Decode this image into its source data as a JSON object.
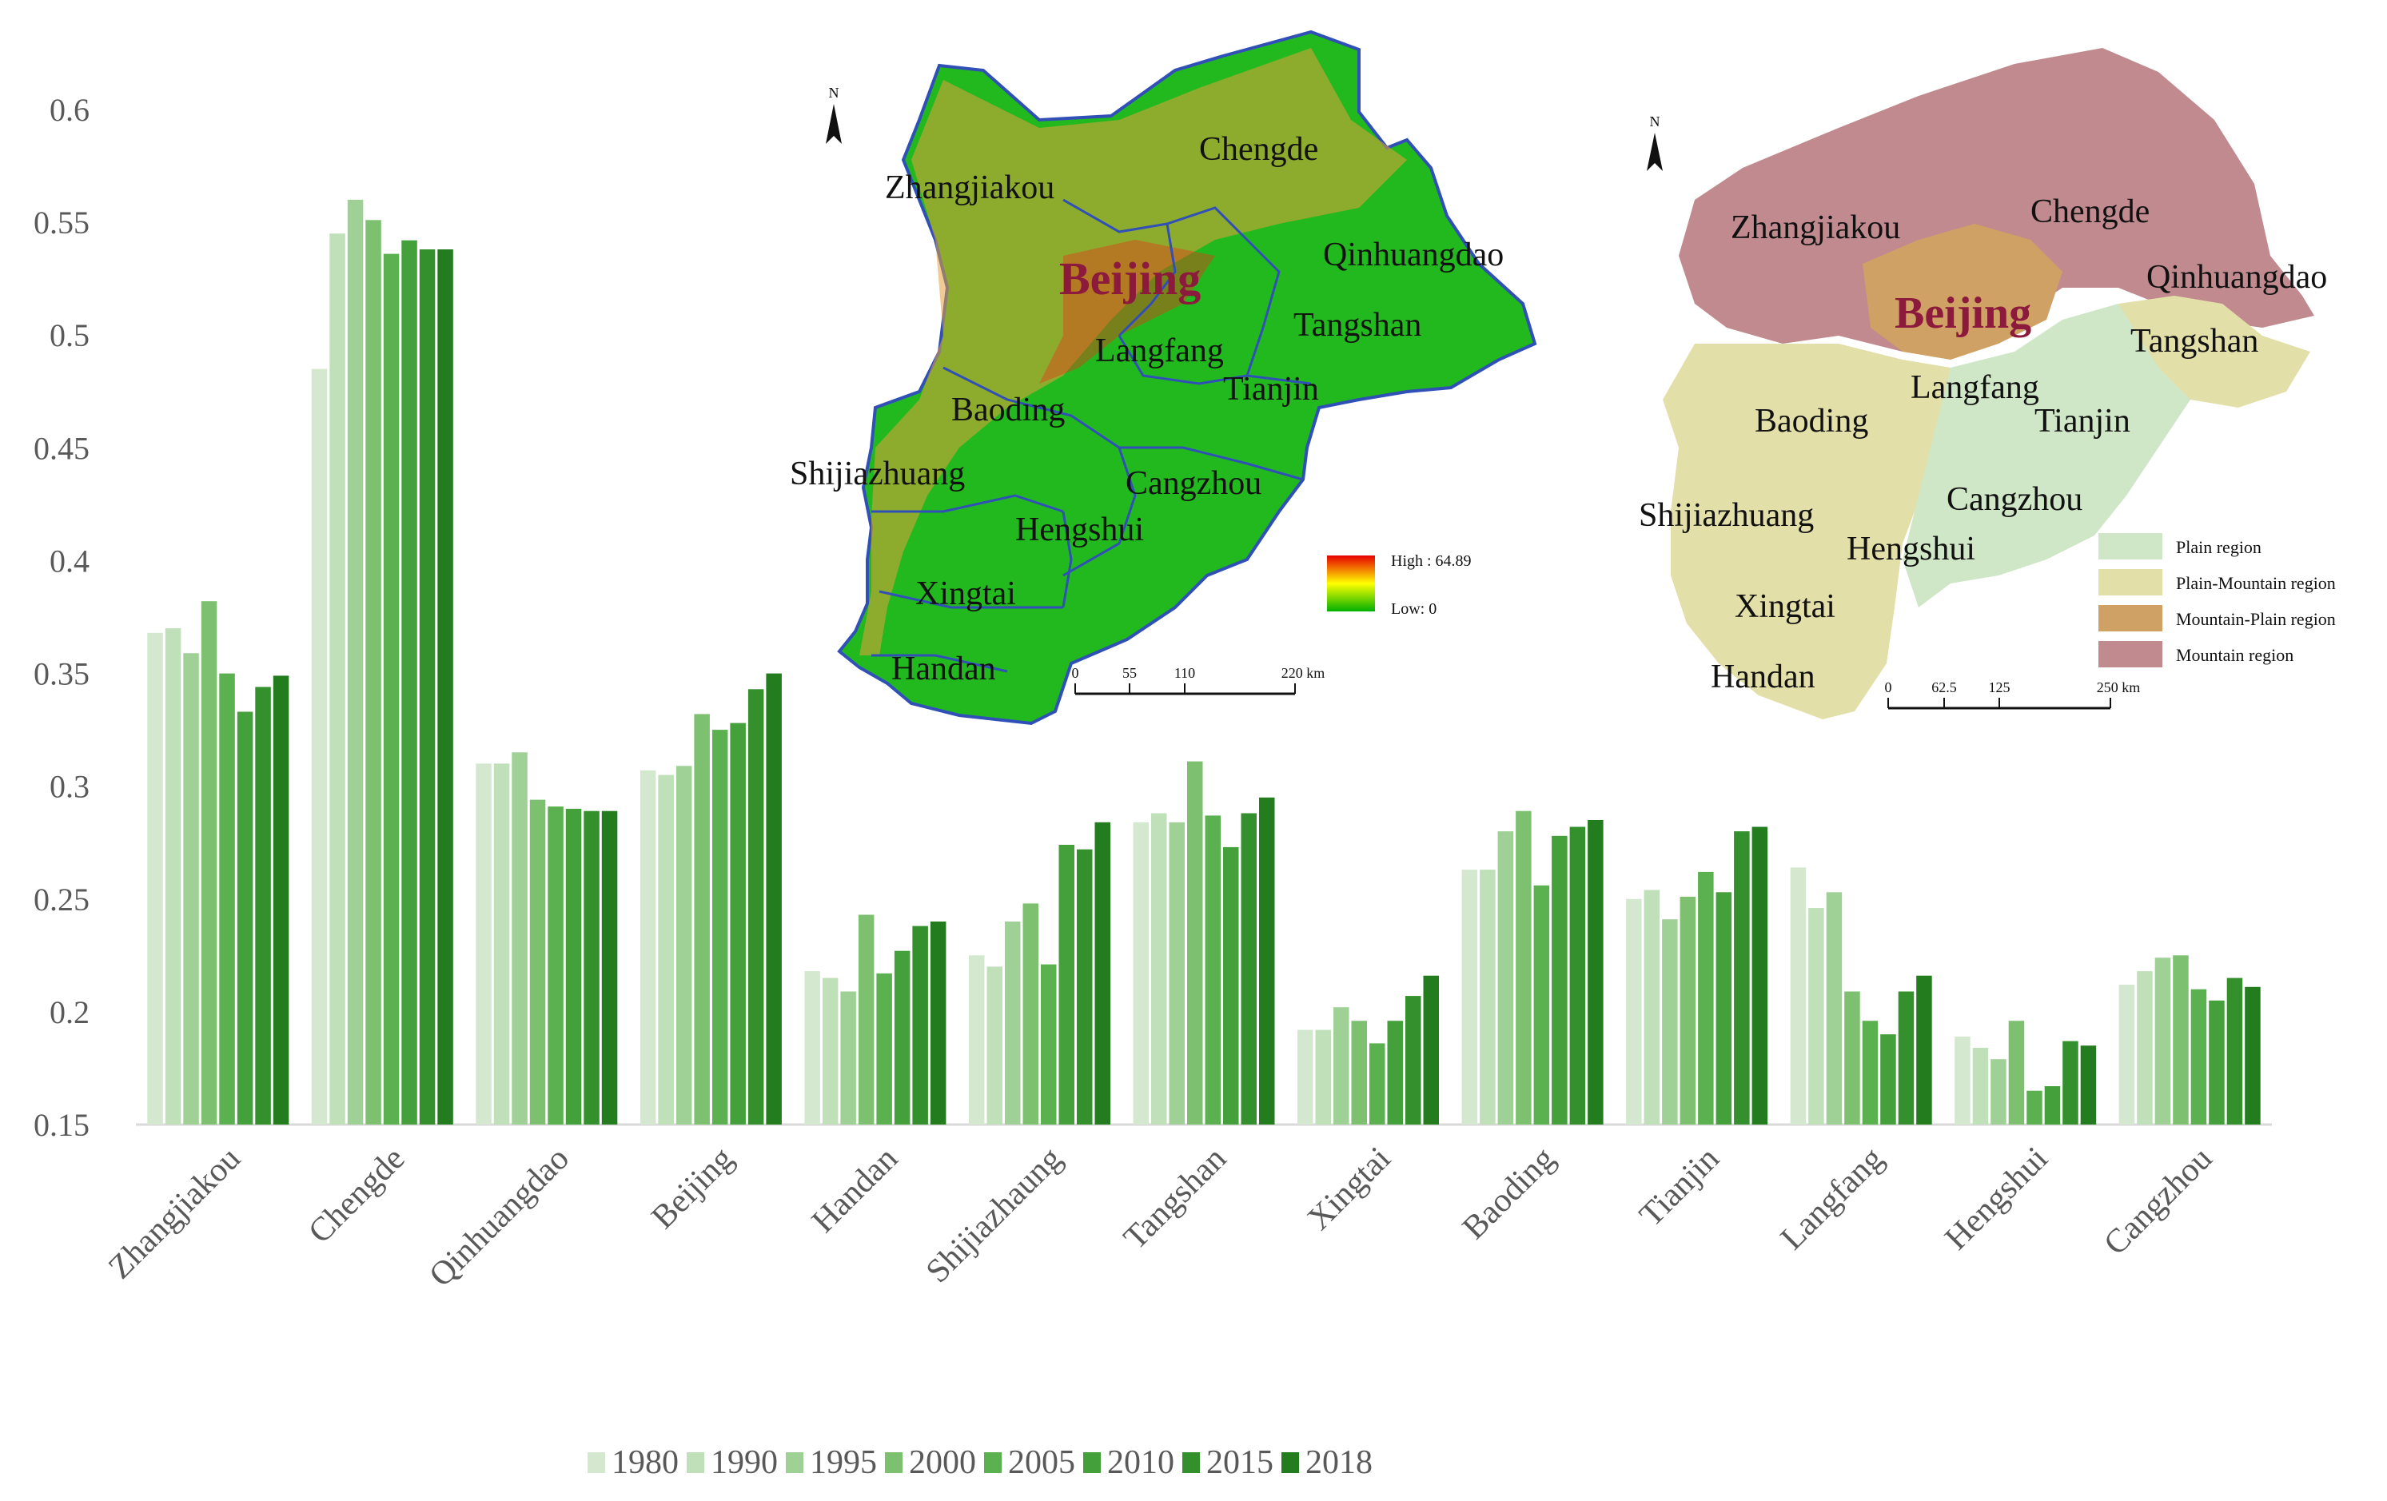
{
  "chart_data": {
    "type": "bar",
    "title": "",
    "xlabel": "",
    "ylabel": "",
    "ylim": [
      0.15,
      0.6
    ],
    "yticks": [
      "0.15",
      "0.2",
      "0.25",
      "0.3",
      "0.35",
      "0.4",
      "0.45",
      "0.5",
      "0.55",
      "0.6"
    ],
    "grid": false,
    "legend_position": "bottom",
    "categories": [
      "Zhangjiakou",
      "Chengde",
      "Qinhuangdao",
      "Beijing",
      "Handan",
      "Shijiazhaung",
      "Tangshan",
      "Xingtai",
      "Baoding",
      "Tianjin",
      "Langfang",
      "Hengshui",
      "Cangzhou"
    ],
    "series": [
      {
        "name": "1980",
        "color": "#d4e8d0",
        "values": [
          0.368,
          0.485,
          0.31,
          0.307,
          0.218,
          0.225,
          0.284,
          0.192,
          0.263,
          0.25,
          0.264,
          0.189,
          0.212
        ]
      },
      {
        "name": "1990",
        "color": "#bfe0b9",
        "values": [
          0.37,
          0.545,
          0.31,
          0.305,
          0.215,
          0.22,
          0.288,
          0.192,
          0.263,
          0.254,
          0.246,
          0.184,
          0.218
        ]
      },
      {
        "name": "1995",
        "color": "#9fd196",
        "values": [
          0.359,
          0.56,
          0.315,
          0.309,
          0.209,
          0.24,
          0.284,
          0.202,
          0.28,
          0.241,
          0.253,
          0.179,
          0.224
        ]
      },
      {
        "name": "2000",
        "color": "#7cc070",
        "values": [
          0.382,
          0.551,
          0.294,
          0.332,
          0.243,
          0.248,
          0.311,
          0.196,
          0.289,
          0.251,
          0.209,
          0.196,
          0.225
        ]
      },
      {
        "name": "2005",
        "color": "#5bb14f",
        "values": [
          0.35,
          0.536,
          0.291,
          0.325,
          0.217,
          0.221,
          0.287,
          0.186,
          0.256,
          0.262,
          0.196,
          0.165,
          0.21
        ]
      },
      {
        "name": "2010",
        "color": "#44a03a",
        "values": [
          0.333,
          0.542,
          0.29,
          0.328,
          0.227,
          0.274,
          0.273,
          0.196,
          0.278,
          0.253,
          0.19,
          0.167,
          0.205
        ]
      },
      {
        "name": "2015",
        "color": "#33902c",
        "values": [
          0.344,
          0.538,
          0.289,
          0.343,
          0.238,
          0.272,
          0.288,
          0.207,
          0.282,
          0.28,
          0.209,
          0.187,
          0.215
        ]
      },
      {
        "name": "2018",
        "color": "#237d1f",
        "values": [
          0.349,
          0.538,
          0.289,
          0.35,
          0.24,
          0.284,
          0.295,
          0.216,
          0.285,
          0.282,
          0.216,
          0.185,
          0.211
        ]
      }
    ],
    "colors": {
      "axis": "#d9d9d9",
      "text": "#595959"
    }
  },
  "inset_maps": {
    "left": {
      "north": "N",
      "labels": [
        "Zhangjiakou",
        "Chengde",
        "Beijing",
        "Qinhuangdao",
        "Tangshan",
        "Langfang",
        "Tianjin",
        "Baoding",
        "Shijiazhuang",
        "Cangzhou",
        "Hengshui",
        "Xingtai",
        "Handan"
      ],
      "legend_high": "High : 64.89",
      "legend_low": "Low: 0",
      "scale_ticks": [
        "0",
        "55",
        "110",
        "220 km"
      ],
      "colors": {
        "land": "#22b91e",
        "border": "#3050b8",
        "highlight": "#e89b3b",
        "beijing": "#8b1a3d"
      }
    },
    "right": {
      "north": "N",
      "labels": [
        "Zhangjiakou",
        "Chengde",
        "Qinhuangdao",
        "Beijing",
        "Tangshan",
        "Baoding",
        "Langfang",
        "Tianjin",
        "Shijiazhuang",
        "Cangzhou",
        "Hengshui",
        "Xingtai",
        "Handan"
      ],
      "legend": [
        {
          "label": "Plain region",
          "color": "#cfe6c7"
        },
        {
          "label": "Plain-Mountain region",
          "color": "#e3dfa8"
        },
        {
          "label": "Mountain-Plain region",
          "color": "#cfa164"
        },
        {
          "label": "Mountain region",
          "color": "#c08a8f"
        }
      ],
      "scale_ticks": [
        "0",
        "62.5",
        "125",
        "250 km"
      ]
    }
  }
}
